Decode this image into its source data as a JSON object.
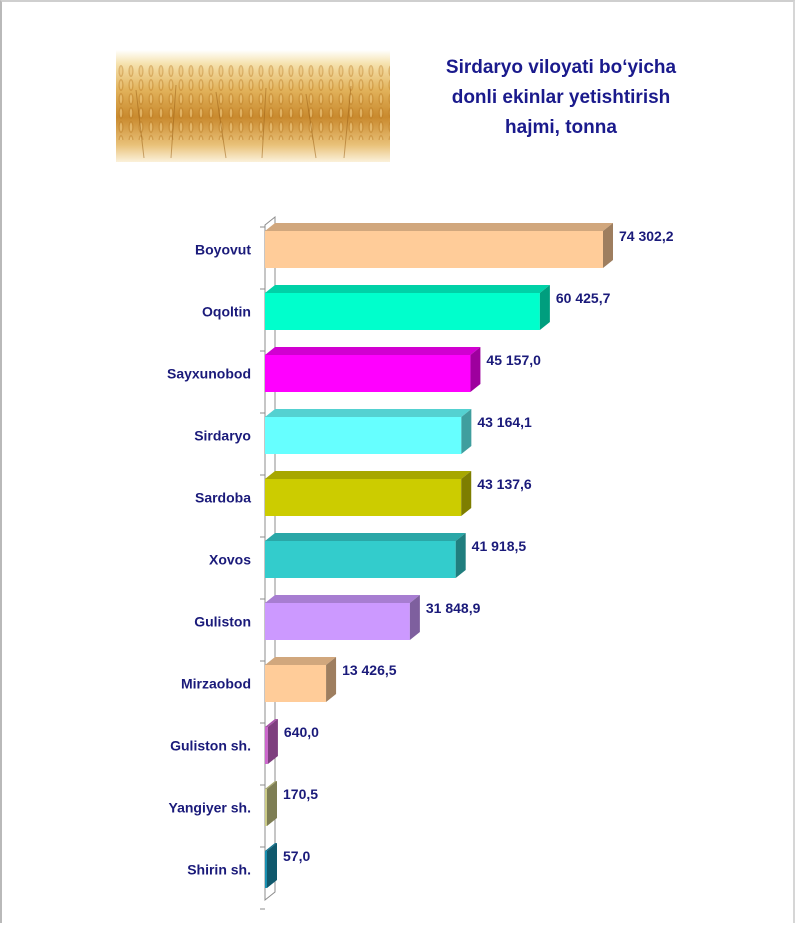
{
  "title": {
    "line1": "Sirdaryo viloyati bo‘yicha",
    "line2": "donli ekinlar yetishtirish",
    "line3": "hajmi, tonna"
  },
  "colors": {
    "title": "#1a1a8c",
    "labels": "#1a1a7a",
    "axis": "#8c8c8c"
  },
  "chart_data": {
    "type": "bar",
    "orientation": "horizontal",
    "style": "3d",
    "title": "Sirdaryo viloyati bo‘yicha donli ekinlar yetishtirish hajmi, tonna",
    "categories": [
      "Boyovut",
      "Oqoltin",
      "Sayxunobod",
      "Sirdaryo",
      "Sardoba",
      "Xovos",
      "Guliston",
      "Mirzaobod",
      "Guliston sh.",
      "Yangiyer sh.",
      "Shirin sh."
    ],
    "values": [
      74302.2,
      60425.7,
      45157.0,
      43164.1,
      43137.6,
      41918.5,
      31848.9,
      13426.5,
      640.0,
      170.5,
      57.0
    ],
    "value_labels": [
      "74 302,2",
      "60 425,7",
      "45 157,0",
      "43 164,1",
      "43 137,6",
      "41 918,5",
      "31 848,9",
      "13 426,5",
      "640,0",
      "170,5",
      "57,0"
    ],
    "bar_colors": [
      "#ffcc99",
      "#00ffcc",
      "#ff00ff",
      "#66ffff",
      "#cccc00",
      "#33cccc",
      "#cc99ff",
      "#ffcc99",
      "#cc66cc",
      "#cccc88",
      "#1a8fb0"
    ],
    "xlim": [
      0,
      80000
    ],
    "grid": false,
    "legend": "none"
  }
}
